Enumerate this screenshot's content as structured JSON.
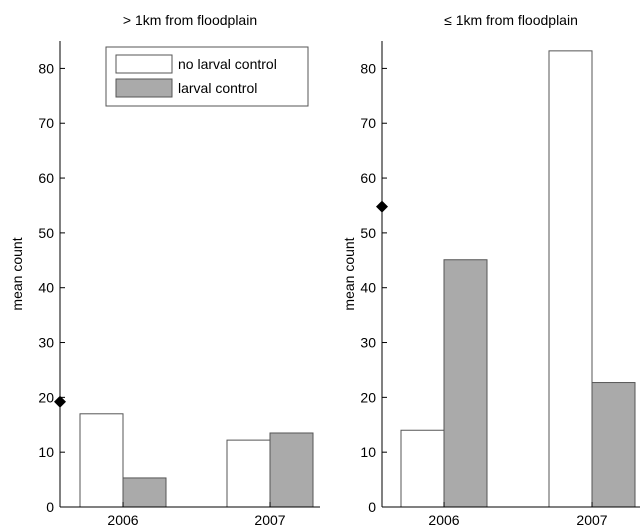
{
  "chart_data": [
    {
      "type": "bar",
      "title": "> 1km from floodplain",
      "ylabel": "mean count",
      "xlabel": "",
      "categories": [
        "2006",
        "2007"
      ],
      "ylim": [
        0,
        85
      ],
      "yticks": [
        0,
        10,
        20,
        30,
        40,
        50,
        60,
        70,
        80
      ],
      "series": [
        {
          "name": "no larval control",
          "values": [
            17.0,
            12.2
          ]
        },
        {
          "name": "larval control",
          "values": [
            5.3,
            13.5
          ]
        }
      ],
      "marker": {
        "shape": "diamond",
        "y": 19.2
      },
      "legend": "top-right",
      "grid": false
    },
    {
      "type": "bar",
      "title": "≤ 1km from floodplain",
      "ylabel": "mean count",
      "xlabel": "",
      "categories": [
        "2006",
        "2007"
      ],
      "ylim": [
        0,
        85
      ],
      "yticks": [
        0,
        10,
        20,
        30,
        40,
        50,
        60,
        70,
        80
      ],
      "series": [
        {
          "name": "no larval control",
          "values": [
            14.0,
            83.2
          ]
        },
        {
          "name": "larval control",
          "values": [
            45.1,
            22.7
          ]
        }
      ],
      "marker": {
        "shape": "diamond",
        "y": 54.8
      },
      "grid": false
    }
  ],
  "colors": {
    "no_larval_control": "#ffffff",
    "larval_control": "#aaaaaa",
    "edge": "#555555",
    "axis": "#000000"
  }
}
